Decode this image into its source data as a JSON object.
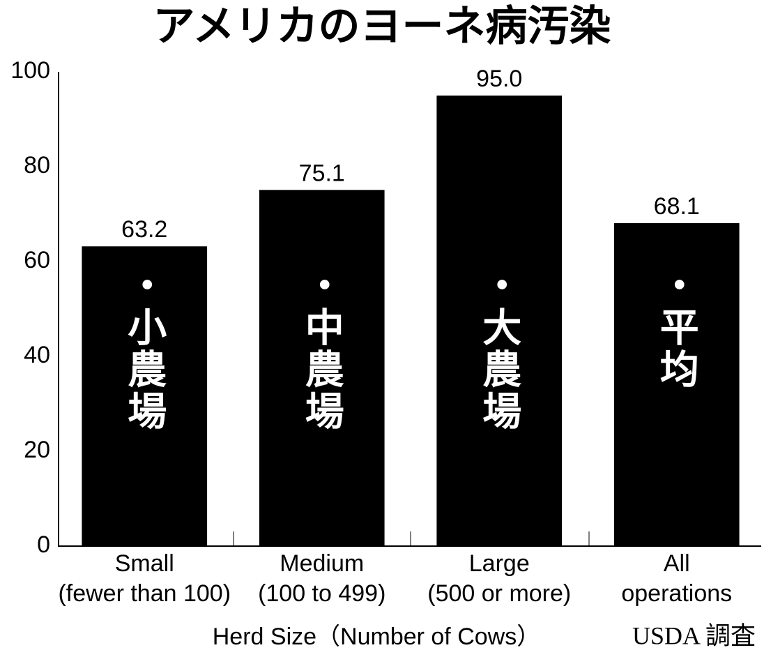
{
  "chart_data": {
    "type": "bar",
    "title": "アメリカのヨーネ病汚染",
    "x_label": "Herd Size（Number of Cows）",
    "source": "USDA 調査",
    "categories": [
      [
        "Small",
        "(fewer than 100)"
      ],
      [
        "Medium",
        "(100 to 499)"
      ],
      [
        "Large",
        "(500 or more)"
      ],
      [
        "All",
        "operations"
      ]
    ],
    "bar_labels": [
      "・小農場",
      "・中農場",
      "・大農場",
      "・平均"
    ],
    "values": [
      63.2,
      75.1,
      95.0,
      68.1
    ],
    "value_labels": [
      "63.2",
      "75.1",
      "95.0",
      "68.1"
    ],
    "color": "#000000",
    "ylim": [
      0,
      100
    ],
    "yticks": [
      0,
      20,
      40,
      60,
      80,
      100
    ],
    "grid": false
  }
}
